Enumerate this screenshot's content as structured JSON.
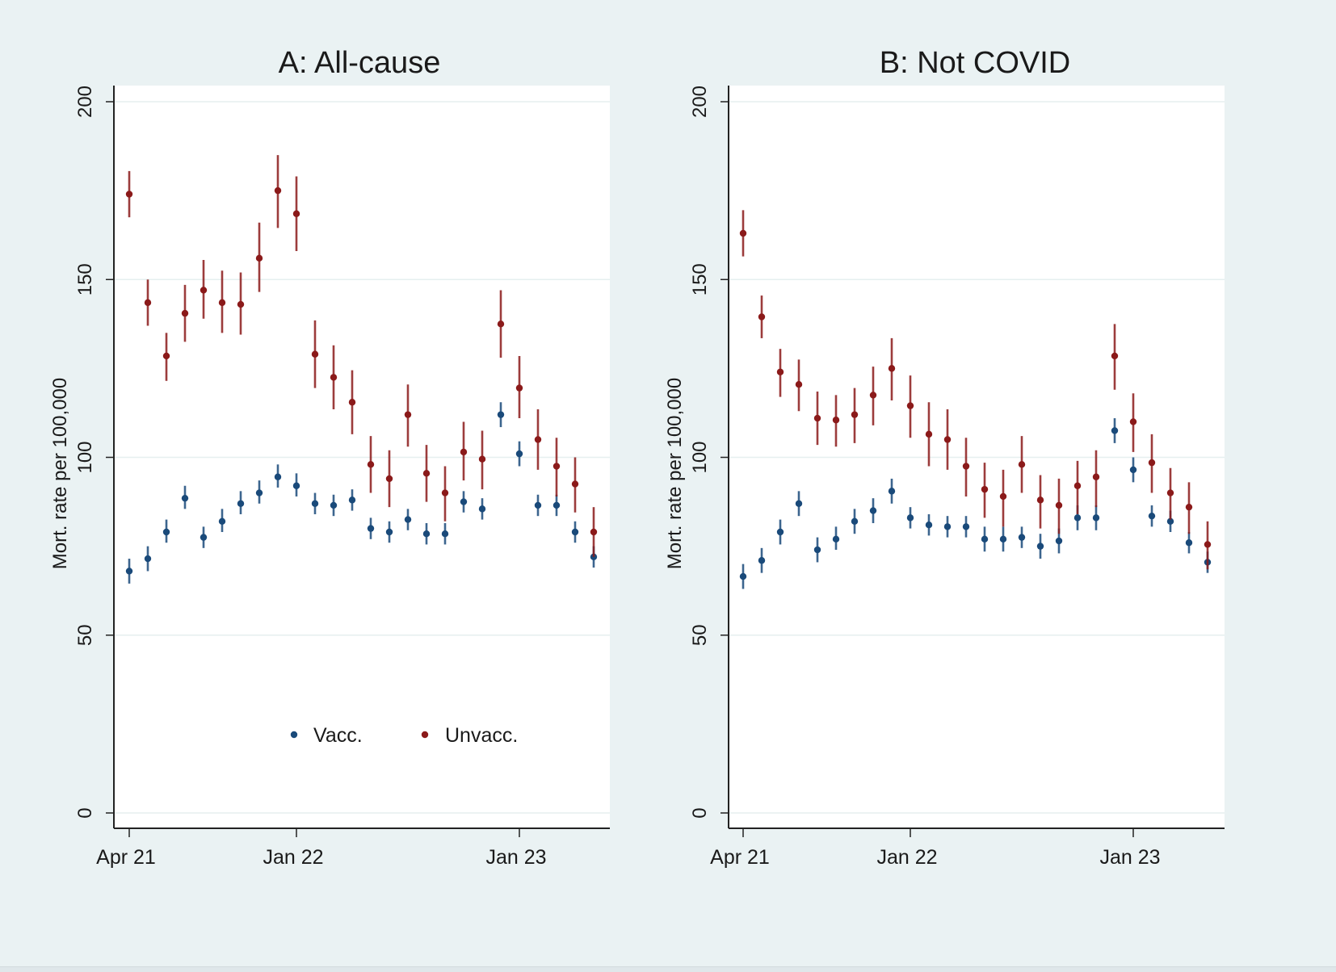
{
  "chart_data": [
    {
      "type": "scatter",
      "subtype": "point-with-error-bars",
      "title": "A: All-cause",
      "xlabel": "",
      "ylabel": "Mort. rate per 100,000",
      "ylim": [
        0,
        200
      ],
      "yticks": [
        0,
        50,
        100,
        150,
        200
      ],
      "ytick_labels": [
        "0",
        "50",
        "100",
        "150",
        "200"
      ],
      "xtick_labels": [
        "Apr 21",
        "Jan 22",
        "Jan 23"
      ],
      "xtick_index": [
        0,
        9,
        21
      ],
      "x": [
        "Apr 21",
        "May 21",
        "Jun 21",
        "Jul 21",
        "Aug 21",
        "Sep 21",
        "Oct 21",
        "Nov 21",
        "Dec 21",
        "Jan 22",
        "Feb 22",
        "Mar 22",
        "Apr 22",
        "May 22",
        "Jun 22",
        "Jul 22",
        "Aug 22",
        "Sep 22",
        "Oct 22",
        "Nov 22",
        "Dec 22",
        "Jan 23",
        "Feb 23",
        "Mar 23",
        "Apr 23",
        "May 23"
      ],
      "grid": true,
      "legend": {
        "position": "bottom-center-inside",
        "entries": [
          "Vacc.",
          "Unvacc."
        ]
      },
      "series": [
        {
          "name": "Vacc.",
          "color": "#1a4a7a",
          "values": [
            68,
            71.5,
            79,
            88.5,
            77.5,
            82,
            87,
            90,
            94.5,
            92,
            87,
            86.5,
            88,
            80,
            79,
            82.5,
            78.5,
            78.5,
            87.5,
            85.5,
            112,
            101,
            86.5,
            86.5,
            79,
            72
          ],
          "lower": [
            64.5,
            68,
            76,
            85.5,
            74.5,
            79,
            84,
            87,
            91.5,
            89,
            84,
            83.5,
            85,
            77,
            76,
            79.5,
            75.5,
            75.5,
            84.5,
            82.5,
            108.5,
            97.5,
            83.5,
            83.5,
            76,
            69
          ],
          "upper": [
            71.5,
            75,
            82.5,
            92,
            80.5,
            85.5,
            90.5,
            93.5,
            98,
            95.5,
            90,
            89.5,
            91,
            83,
            82,
            85.5,
            81.5,
            81.5,
            90.5,
            88.5,
            115.5,
            104.5,
            89.5,
            89.5,
            82,
            75
          ]
        },
        {
          "name": "Unvacc.",
          "color": "#8b1a1a",
          "values": [
            174,
            143.5,
            128.5,
            140.5,
            147,
            143.5,
            143,
            156,
            175,
            168.5,
            129,
            122.5,
            115.5,
            98,
            94,
            112,
            95.5,
            90,
            101.5,
            99.5,
            137.5,
            119.5,
            105,
            97.5,
            92.5,
            79
          ],
          "lower": [
            167.5,
            137,
            121.5,
            132.5,
            139,
            135,
            134.5,
            146.5,
            164.5,
            158,
            119.5,
            113.5,
            106.5,
            90,
            86,
            103,
            87.5,
            82,
            93.5,
            91,
            128,
            111,
            96.5,
            89,
            84.5,
            72
          ],
          "upper": [
            180.5,
            150,
            135,
            148.5,
            155.5,
            152.5,
            152,
            166,
            185,
            179,
            138.5,
            131.5,
            124.5,
            106,
            102,
            120.5,
            103.5,
            97.5,
            110,
            107.5,
            147,
            128.5,
            113.5,
            105.5,
            100,
            86
          ]
        }
      ]
    },
    {
      "type": "scatter",
      "subtype": "point-with-error-bars",
      "title": "B: Not COVID",
      "xlabel": "",
      "ylabel": "Mort. rate per 100,000",
      "ylim": [
        0,
        200
      ],
      "yticks": [
        0,
        50,
        100,
        150,
        200
      ],
      "ytick_labels": [
        "0",
        "50",
        "100",
        "150",
        "200"
      ],
      "xtick_labels": [
        "Apr 21",
        "Jan 22",
        "Jan 23"
      ],
      "xtick_index": [
        0,
        9,
        21
      ],
      "x": [
        "Apr 21",
        "May 21",
        "Jun 21",
        "Jul 21",
        "Aug 21",
        "Sep 21",
        "Oct 21",
        "Nov 21",
        "Dec 21",
        "Jan 22",
        "Feb 22",
        "Mar 22",
        "Apr 22",
        "May 22",
        "Jun 22",
        "Jul 22",
        "Aug 22",
        "Sep 22",
        "Oct 22",
        "Nov 22",
        "Dec 22",
        "Jan 23",
        "Feb 23",
        "Mar 23",
        "Apr 23",
        "May 23"
      ],
      "grid": true,
      "legend": null,
      "series": [
        {
          "name": "Vacc.",
          "color": "#1a4a7a",
          "values": [
            66.5,
            71,
            79,
            87,
            74,
            77,
            82,
            85,
            90.5,
            83,
            81,
            80.5,
            80.5,
            77,
            77,
            77.5,
            75,
            76.5,
            83,
            83,
            107.5,
            96.5,
            83.5,
            82,
            76,
            70.5
          ],
          "lower": [
            63,
            67.5,
            75.5,
            83.5,
            70.5,
            74,
            78.5,
            81.5,
            87,
            80,
            78,
            77.5,
            77.5,
            73.5,
            73.5,
            74.5,
            71.5,
            73,
            79.5,
            79.5,
            104,
            93,
            80.5,
            79,
            73,
            67.5
          ],
          "upper": [
            70,
            74.5,
            82.5,
            90.5,
            77.5,
            80.5,
            85.5,
            88.5,
            94,
            86,
            84,
            83.5,
            83.5,
            80.5,
            80.5,
            80.5,
            78.5,
            80,
            86.5,
            86.5,
            111,
            100,
            86.5,
            85,
            79,
            73.5
          ]
        },
        {
          "name": "Unvacc.",
          "color": "#8b1a1a",
          "values": [
            163,
            139.5,
            124,
            120.5,
            111,
            110.5,
            112,
            117.5,
            125,
            114.5,
            106.5,
            105,
            97.5,
            91,
            89,
            98,
            88,
            86.5,
            92,
            94.5,
            128.5,
            110,
            98.5,
            90,
            86,
            75.5
          ],
          "lower": [
            156.5,
            133.5,
            117,
            113,
            103.5,
            103,
            104,
            109,
            116,
            105.5,
            97.5,
            96.5,
            89,
            83,
            80.5,
            90,
            80,
            78.5,
            84,
            86,
            119,
            101.5,
            90,
            82.5,
            78.5,
            68.5
          ],
          "upper": [
            169.5,
            145.5,
            130.5,
            127.5,
            118.5,
            117.5,
            119.5,
            125.5,
            133.5,
            123,
            115.5,
            113.5,
            105.5,
            98.5,
            96.5,
            106,
            95,
            94,
            99,
            102,
            137.5,
            118,
            106.5,
            97,
            93,
            82
          ]
        }
      ]
    }
  ]
}
